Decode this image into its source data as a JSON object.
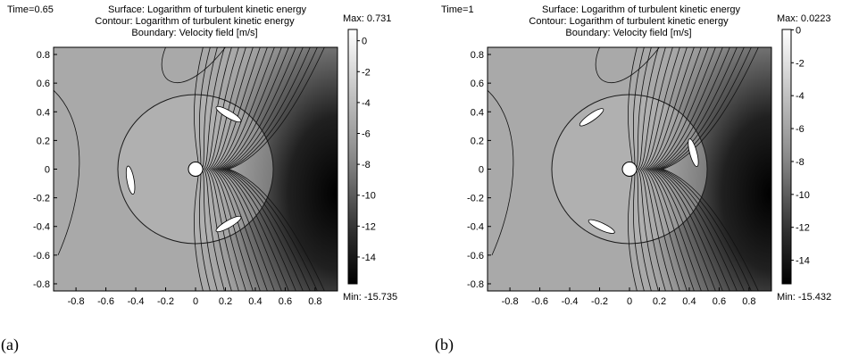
{
  "chart_data": [
    {
      "type": "heatmap",
      "caption": "(a)",
      "time": "Time=0.65",
      "title_lines": [
        "Surface: Logarithm of turbulent kinetic energy",
        "Contour: Logarithm of turbulent kinetic energy",
        "Boundary: Velocity field [m/s]"
      ],
      "x_ticks": [
        "-0.8",
        "-0.6",
        "-0.4",
        "-0.2",
        "0",
        "0.2",
        "0.4",
        "0.6",
        "0.8"
      ],
      "y_ticks": [
        "0.8",
        "0.6",
        "0.4",
        "0.2",
        "0",
        "-0.2",
        "-0.4",
        "-0.6",
        "-0.8"
      ],
      "xlim": [
        -0.95,
        0.95
      ],
      "ylim": [
        -0.85,
        0.85
      ],
      "colorbar": {
        "max_label": "Max: 0.731",
        "min_label": "Min: -15.735",
        "max": 0.731,
        "min": -15.735,
        "ticks": [
          "0",
          "-2",
          "-4",
          "-6",
          "-8",
          "-10",
          "-12",
          "-14"
        ]
      },
      "rotor_radius": 0.52,
      "blade_angles_deg": [
        60,
        190,
        300
      ]
    },
    {
      "type": "heatmap",
      "caption": "(b)",
      "time": "Time=1",
      "title_lines": [
        "Surface: Logarithm of turbulent kinetic energy",
        "Contour: Logarithm of turbulent kinetic energy",
        "Boundary: Velocity field [m/s]"
      ],
      "x_ticks": [
        "-0.8",
        "-0.6",
        "-0.4",
        "-0.2",
        "0",
        "0.2",
        "0.4",
        "0.6",
        "0.8"
      ],
      "y_ticks": [
        "0.8",
        "0.6",
        "0.4",
        "0.2",
        "0",
        "-0.2",
        "-0.4",
        "-0.6",
        "-0.8"
      ],
      "xlim": [
        -0.95,
        0.95
      ],
      "ylim": [
        -0.85,
        0.85
      ],
      "colorbar": {
        "max_label": "Max: 0.0223",
        "min_label": "Min: -15.432",
        "max": 0.0223,
        "min": -15.432,
        "ticks": [
          "0",
          "-2",
          "-4",
          "-6",
          "-8",
          "-10",
          "-12",
          "-14"
        ]
      },
      "rotor_radius": 0.52,
      "blade_angles_deg": [
        15,
        125,
        245
      ]
    }
  ]
}
